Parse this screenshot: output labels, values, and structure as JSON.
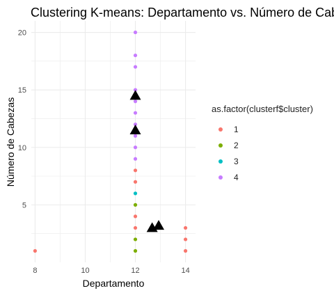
{
  "chart_data": {
    "type": "scatter",
    "title": "Clustering K-means: Departamento vs. Número de Cabezas",
    "xlabel": "Departamento",
    "ylabel": "Número de Cabezas",
    "xlim": [
      7.85,
      14.4
    ],
    "ylim": [
      0,
      21
    ],
    "x_ticks": [
      8,
      10,
      12,
      14
    ],
    "y_ticks": [
      5,
      10,
      15,
      20
    ],
    "grid": true,
    "legend": {
      "title": "as.factor(clusterf$cluster)",
      "placement": "right",
      "entries": [
        {
          "label": "1",
          "color": "#F8766D"
        },
        {
          "label": "2",
          "color": "#7CAE00"
        },
        {
          "label": "3",
          "color": "#00BFC4"
        },
        {
          "label": "4",
          "color": "#C77CFF"
        }
      ]
    },
    "series": [
      {
        "name": "1",
        "color": "#F8766D",
        "points": [
          [
            8,
            1
          ],
          [
            12,
            3
          ],
          [
            12,
            4
          ],
          [
            12,
            7
          ],
          [
            12,
            8
          ],
          [
            14,
            1
          ],
          [
            14,
            2
          ],
          [
            14,
            3
          ]
        ]
      },
      {
        "name": "2",
        "color": "#7CAE00",
        "points": [
          [
            12,
            1
          ],
          [
            12,
            2
          ],
          [
            12,
            5
          ]
        ]
      },
      {
        "name": "3",
        "color": "#00BFC4",
        "points": [
          [
            12,
            6
          ]
        ]
      },
      {
        "name": "4",
        "color": "#C77CFF",
        "points": [
          [
            12,
            9
          ],
          [
            12,
            10
          ],
          [
            12,
            11
          ],
          [
            12,
            12
          ],
          [
            12,
            13
          ],
          [
            12,
            14
          ],
          [
            12,
            15
          ],
          [
            12,
            17
          ],
          [
            12,
            18
          ],
          [
            12,
            20
          ]
        ]
      }
    ],
    "centroids": {
      "color": "#000000",
      "marker": "triangle",
      "points": [
        [
          12,
          14.5
        ],
        [
          12,
          11.5
        ],
        [
          12.67,
          3
        ],
        [
          12.93,
          3.2
        ]
      ]
    }
  }
}
